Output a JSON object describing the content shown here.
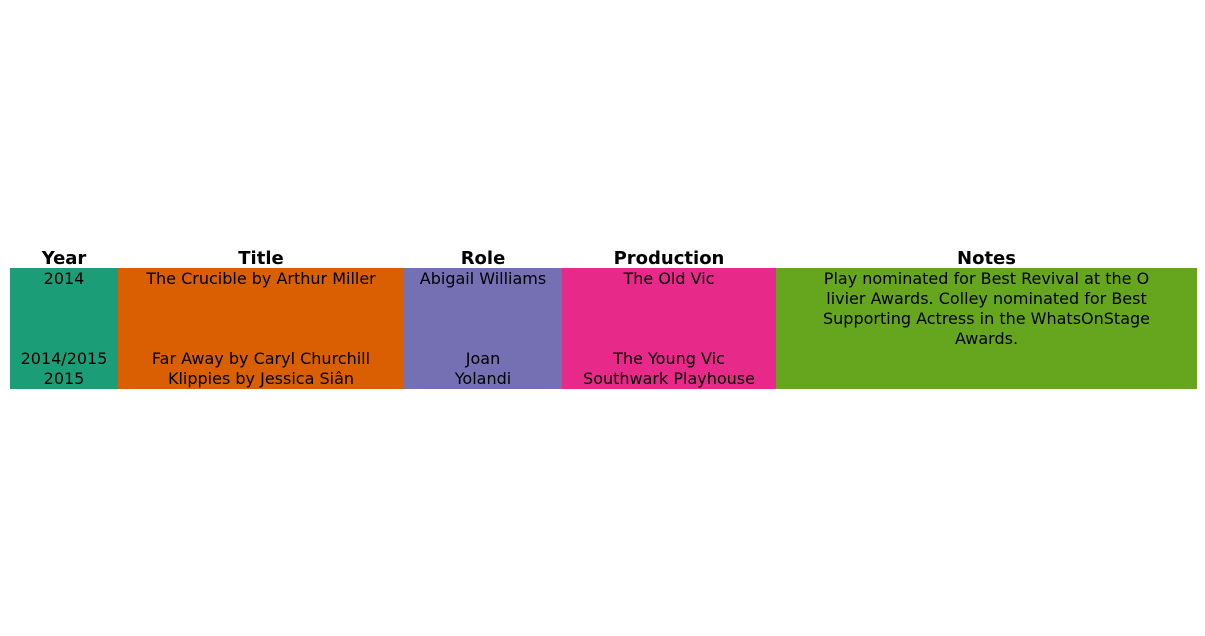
{
  "chart_data": {
    "type": "table",
    "columns": [
      "Year",
      "Title",
      "Role",
      "Production",
      "Notes"
    ],
    "column_colors": [
      "#1b9e77",
      "#d95f02",
      "#7570b3",
      "#e7298a",
      "#66a61e"
    ],
    "rows": [
      {
        "Year": "2014",
        "Title": "The Crucible by Arthur Miller",
        "Role": "Abigail Williams",
        "Production": "The Old Vic",
        "Notes": [
          "Play nominated for Best Revival at the O",
          "livier Awards. Colley nominated for Best",
          "Supporting Actress in the WhatsOnStage",
          "Awards."
        ]
      },
      {
        "Year": "2014/2015",
        "Title": "Far Away by Caryl Churchill",
        "Role": "Joan",
        "Production": "The Young Vic",
        "Notes": []
      },
      {
        "Year": "2015",
        "Title": "Klippies by Jessica Siân",
        "Role": "Yolandi",
        "Production": "Southwark Playhouse",
        "Notes": []
      }
    ]
  }
}
